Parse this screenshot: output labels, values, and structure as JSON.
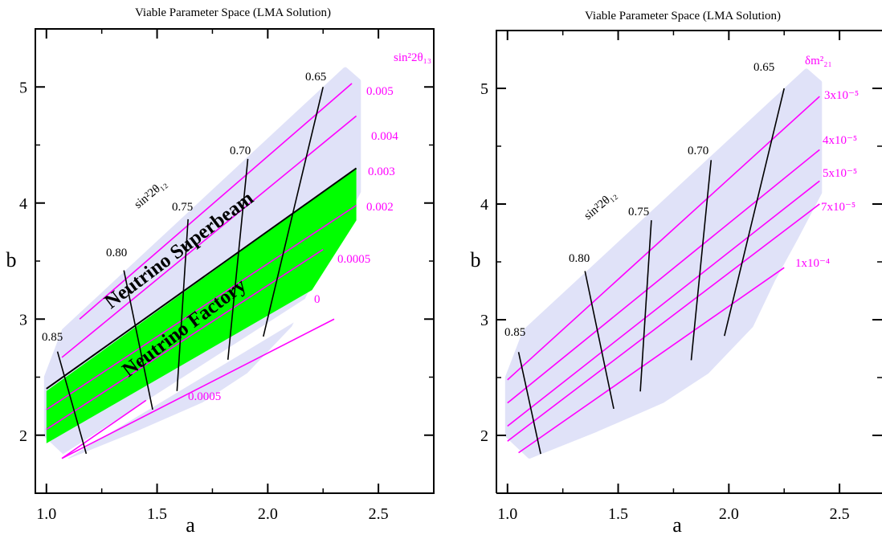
{
  "chart_data": [
    {
      "type": "area",
      "title": "Viable Parameter Space (LMA Solution)",
      "xlabel": "a",
      "ylabel": "b",
      "xlim": [
        0.95,
        2.75
      ],
      "ylim": [
        1.5,
        5.5
      ],
      "xticks": [
        "1.0",
        "1.5",
        "2.0",
        "2.5"
      ],
      "yticks": [
        "2",
        "3",
        "4",
        "5"
      ],
      "colors": {
        "allowed": "#e0e2f8",
        "factory": "#00ff00",
        "contour_theta13": "#ff00ff",
        "contour_theta12": "#000000"
      },
      "region_labels": [
        "Neutrino Superbeam",
        "Neutrino Factory"
      ],
      "allowed_region": [
        [
          1.0,
          2.5
        ],
        [
          1.08,
          2.9
        ],
        [
          2.35,
          5.15
        ],
        [
          2.41,
          5.05
        ],
        [
          2.41,
          4.1
        ],
        [
          2.3,
          3.7
        ],
        [
          2.2,
          3.35
        ],
        [
          2.1,
          2.95
        ],
        [
          1.9,
          2.55
        ],
        [
          1.7,
          2.3
        ],
        [
          1.4,
          2.05
        ],
        [
          1.1,
          1.82
        ],
        [
          1.0,
          2.0
        ]
      ],
      "factory_region": [
        [
          1.0,
          2.38
        ],
        [
          2.4,
          4.3
        ],
        [
          2.4,
          3.85
        ],
        [
          2.2,
          3.25
        ],
        [
          1.0,
          1.93
        ]
      ],
      "gap_region": [
        [
          1.07,
          1.83
        ],
        [
          2.23,
          3.25
        ],
        [
          2.23,
          3.1
        ],
        [
          1.07,
          1.77
        ]
      ],
      "sin2_2theta12_label": "sin²2θ₁₂",
      "sin2_2theta13_header": "sin²2θ₁₃",
      "sin2_2theta13_contours": [
        {
          "label": "0.005",
          "x": [
            1.15,
            2.38
          ],
          "y": [
            3.0,
            5.03
          ]
        },
        {
          "label": "0.004",
          "x": [
            1.07,
            2.4
          ],
          "y": [
            2.67,
            4.75
          ]
        },
        {
          "label": "0.003",
          "x": [
            1.0,
            2.4
          ],
          "y": [
            2.4,
            4.3
          ]
        },
        {
          "label": "0.002",
          "x": [
            1.0,
            2.4
          ],
          "y": [
            2.22,
            3.98
          ]
        },
        {
          "label": "0.0005",
          "x": [
            1.0,
            2.25
          ],
          "y": [
            2.05,
            3.6
          ]
        },
        {
          "label": "0",
          "x": [
            1.07,
            2.3
          ],
          "y": [
            1.8,
            3.0
          ]
        },
        {
          "label": "0.0005",
          "x": [
            1.07,
            1.45
          ],
          "y": [
            1.8,
            2.3
          ]
        }
      ],
      "sin2_2theta12_contours": [
        {
          "label": "0.85",
          "x": [
            1.05,
            1.18
          ],
          "y": [
            2.72,
            1.84
          ]
        },
        {
          "label": "0.80",
          "x": [
            1.35,
            1.48
          ],
          "y": [
            3.42,
            2.22
          ]
        },
        {
          "label": "0.75",
          "x": [
            1.64,
            1.59
          ],
          "y": [
            3.86,
            2.38
          ]
        },
        {
          "label": "0.70",
          "x": [
            1.91,
            1.82
          ],
          "y": [
            4.38,
            2.65
          ]
        },
        {
          "label": "0.65",
          "x": [
            2.25,
            1.98
          ],
          "y": [
            5.0,
            2.85
          ]
        }
      ],
      "grid": false,
      "legend": "right-edge contour labels"
    },
    {
      "type": "area",
      "title": "Viable Parameter Space (LMA Solution)",
      "xlabel": "a",
      "ylabel": "b",
      "xlim": [
        0.95,
        2.75
      ],
      "ylim": [
        1.5,
        5.5
      ],
      "xticks": [
        "1.0",
        "1.5",
        "2.0",
        "2.5"
      ],
      "yticks": [
        "2",
        "3",
        "4",
        "5"
      ],
      "colors": {
        "allowed": "#e0e2f8",
        "contour_dm21": "#ff00ff",
        "contour_theta12": "#000000"
      },
      "allowed_region": [
        [
          1.0,
          2.5
        ],
        [
          1.08,
          2.9
        ],
        [
          2.35,
          5.15
        ],
        [
          2.41,
          5.05
        ],
        [
          2.41,
          4.1
        ],
        [
          2.3,
          3.7
        ],
        [
          2.2,
          3.35
        ],
        [
          2.1,
          2.95
        ],
        [
          1.9,
          2.55
        ],
        [
          1.7,
          2.3
        ],
        [
          1.4,
          2.05
        ],
        [
          1.1,
          1.82
        ],
        [
          1.0,
          2.0
        ]
      ],
      "sin2_2theta12_label": "sin²2θ₁₂",
      "dm21_header": "δm²₂₁",
      "dm21_contours": [
        {
          "label": "3x10⁻⁵",
          "x": [
            1.0,
            2.41
          ],
          "y": [
            2.48,
            4.93
          ]
        },
        {
          "label": "4x10⁻⁵",
          "x": [
            1.0,
            2.41
          ],
          "y": [
            2.28,
            4.47
          ]
        },
        {
          "label": "5x10⁻⁵",
          "x": [
            1.0,
            2.41
          ],
          "y": [
            2.08,
            4.2
          ]
        },
        {
          "label": "7x10⁻⁵",
          "x": [
            1.0,
            2.41
          ],
          "y": [
            1.95,
            4.0
          ]
        },
        {
          "label": "1x10⁻⁴",
          "x": [
            1.05,
            2.25
          ],
          "y": [
            1.85,
            3.45
          ]
        }
      ],
      "sin2_2theta12_contours": [
        {
          "label": "0.85",
          "x": [
            1.05,
            1.15
          ],
          "y": [
            2.72,
            1.84
          ]
        },
        {
          "label": "0.80",
          "x": [
            1.35,
            1.48
          ],
          "y": [
            3.42,
            2.23
          ]
        },
        {
          "label": "0.75",
          "x": [
            1.65,
            1.6
          ],
          "y": [
            3.86,
            2.38
          ]
        },
        {
          "label": "0.70",
          "x": [
            1.92,
            1.83
          ],
          "y": [
            4.38,
            2.65
          ]
        },
        {
          "label": "0.65",
          "x": [
            2.25,
            1.98
          ],
          "y": [
            5.0,
            2.86
          ]
        }
      ],
      "grid": false,
      "legend": "right-edge contour labels"
    }
  ]
}
